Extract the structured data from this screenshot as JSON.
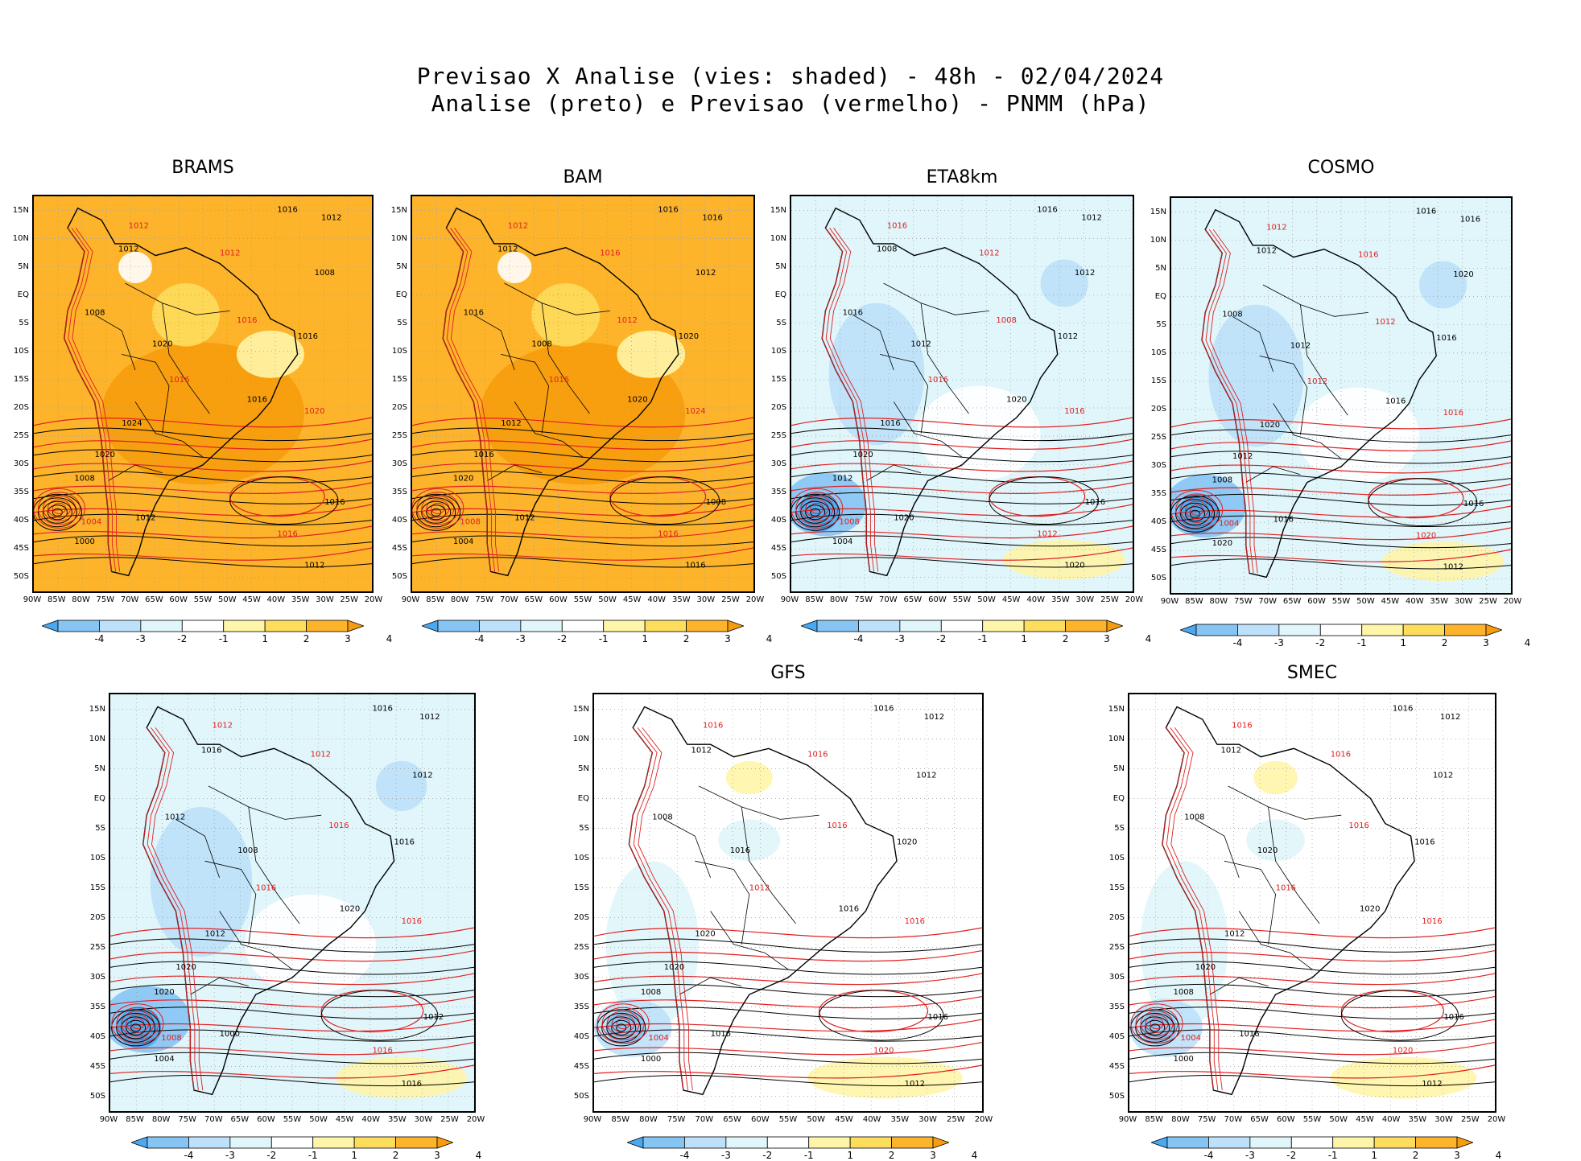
{
  "title": {
    "line1": "Previsao X Analise (vies: shaded) - 48h - 02/04/2024",
    "line2": "Analise (preto) e Previsao (vermelho) - PNMM (hPa)"
  },
  "axes": {
    "lat_labels": [
      "15N",
      "10N",
      "5N",
      "EQ",
      "5S",
      "10S",
      "15S",
      "20S",
      "25S",
      "30S",
      "35S",
      "40S",
      "45S",
      "50S"
    ],
    "lon_labels": [
      "90W",
      "85W",
      "80W",
      "75W",
      "70W",
      "65W",
      "60W",
      "55W",
      "50W",
      "45W",
      "40W",
      "35W",
      "30W",
      "25W",
      "20W"
    ]
  },
  "colorbar": {
    "labels": [
      "-4",
      "-3",
      "-2",
      "-1",
      "1",
      "2",
      "3",
      "4"
    ],
    "colors": [
      "#4aa8f0",
      "#86c4f4",
      "#bde1fa",
      "#e0f6fb",
      "#ffffff",
      "#fff5a8",
      "#fedc5c",
      "#fdb42a",
      "#f79c0c"
    ]
  },
  "contour_colors": {
    "analysis": "#000000",
    "forecast": "#e02020"
  },
  "panels": [
    {
      "name": "BRAMS",
      "bias": "warm",
      "labels": [
        "1016",
        "1012",
        "1012",
        "1012",
        "1012",
        "1008",
        "1008",
        "1016",
        "1020",
        "1016",
        "1016",
        "1016",
        "1024",
        "1020",
        "1020",
        "1008",
        "1004",
        "1000",
        "1012",
        "1016",
        "1016",
        "1012"
      ]
    },
    {
      "name": "BAM",
      "bias": "warm",
      "labels": [
        "1016",
        "1012",
        "1016",
        "1012",
        "1016",
        "1012",
        "1016",
        "1012",
        "1008",
        "1020",
        "1016",
        "1020",
        "1012",
        "1024",
        "1016",
        "1020",
        "1008",
        "1004",
        "1012",
        "1016",
        "1008",
        "1016"
      ]
    },
    {
      "name": "ETA8km",
      "bias": "cool",
      "labels": [
        "1016",
        "1016",
        "1012",
        "1008",
        "1012",
        "1012",
        "1016",
        "1008",
        "1012",
        "1012",
        "1016",
        "1020",
        "1016",
        "1016",
        "1020",
        "1012",
        "1008",
        "1004",
        "1020",
        "1012",
        "1016",
        "1020"
      ]
    },
    {
      "name": "COSMO",
      "bias": "cool",
      "labels": [
        "1016",
        "1012",
        "1016",
        "1012",
        "1016",
        "1020",
        "1008",
        "1012",
        "1012",
        "1016",
        "1012",
        "1016",
        "1020",
        "1016",
        "1012",
        "1008",
        "1004",
        "1020",
        "1016",
        "1020",
        "1016",
        "1012"
      ]
    },
    {
      "name": "",
      "bias": "cool",
      "labels": [
        "1016",
        "1012",
        "1012",
        "1016",
        "1012",
        "1012",
        "1012",
        "1016",
        "1008",
        "1016",
        "1016",
        "1020",
        "1012",
        "1016",
        "1020",
        "1020",
        "1008",
        "1004",
        "1000",
        "1016",
        "1012",
        "1016"
      ]
    },
    {
      "name": "GFS",
      "bias": "mixed",
      "labels": [
        "1016",
        "1016",
        "1012",
        "1012",
        "1016",
        "1012",
        "1008",
        "1016",
        "1016",
        "1020",
        "1012",
        "1016",
        "1020",
        "1016",
        "1020",
        "1008",
        "1004",
        "1000",
        "1016",
        "1020",
        "1016",
        "1012"
      ]
    },
    {
      "name": "SMEC",
      "bias": "mixed",
      "labels": [
        "1016",
        "1016",
        "1012",
        "1012",
        "1016",
        "1012",
        "1008",
        "1016",
        "1020",
        "1016",
        "1016",
        "1020",
        "1012",
        "1016",
        "1020",
        "1008",
        "1004",
        "1000",
        "1016",
        "1020",
        "1016",
        "1012"
      ]
    }
  ]
}
